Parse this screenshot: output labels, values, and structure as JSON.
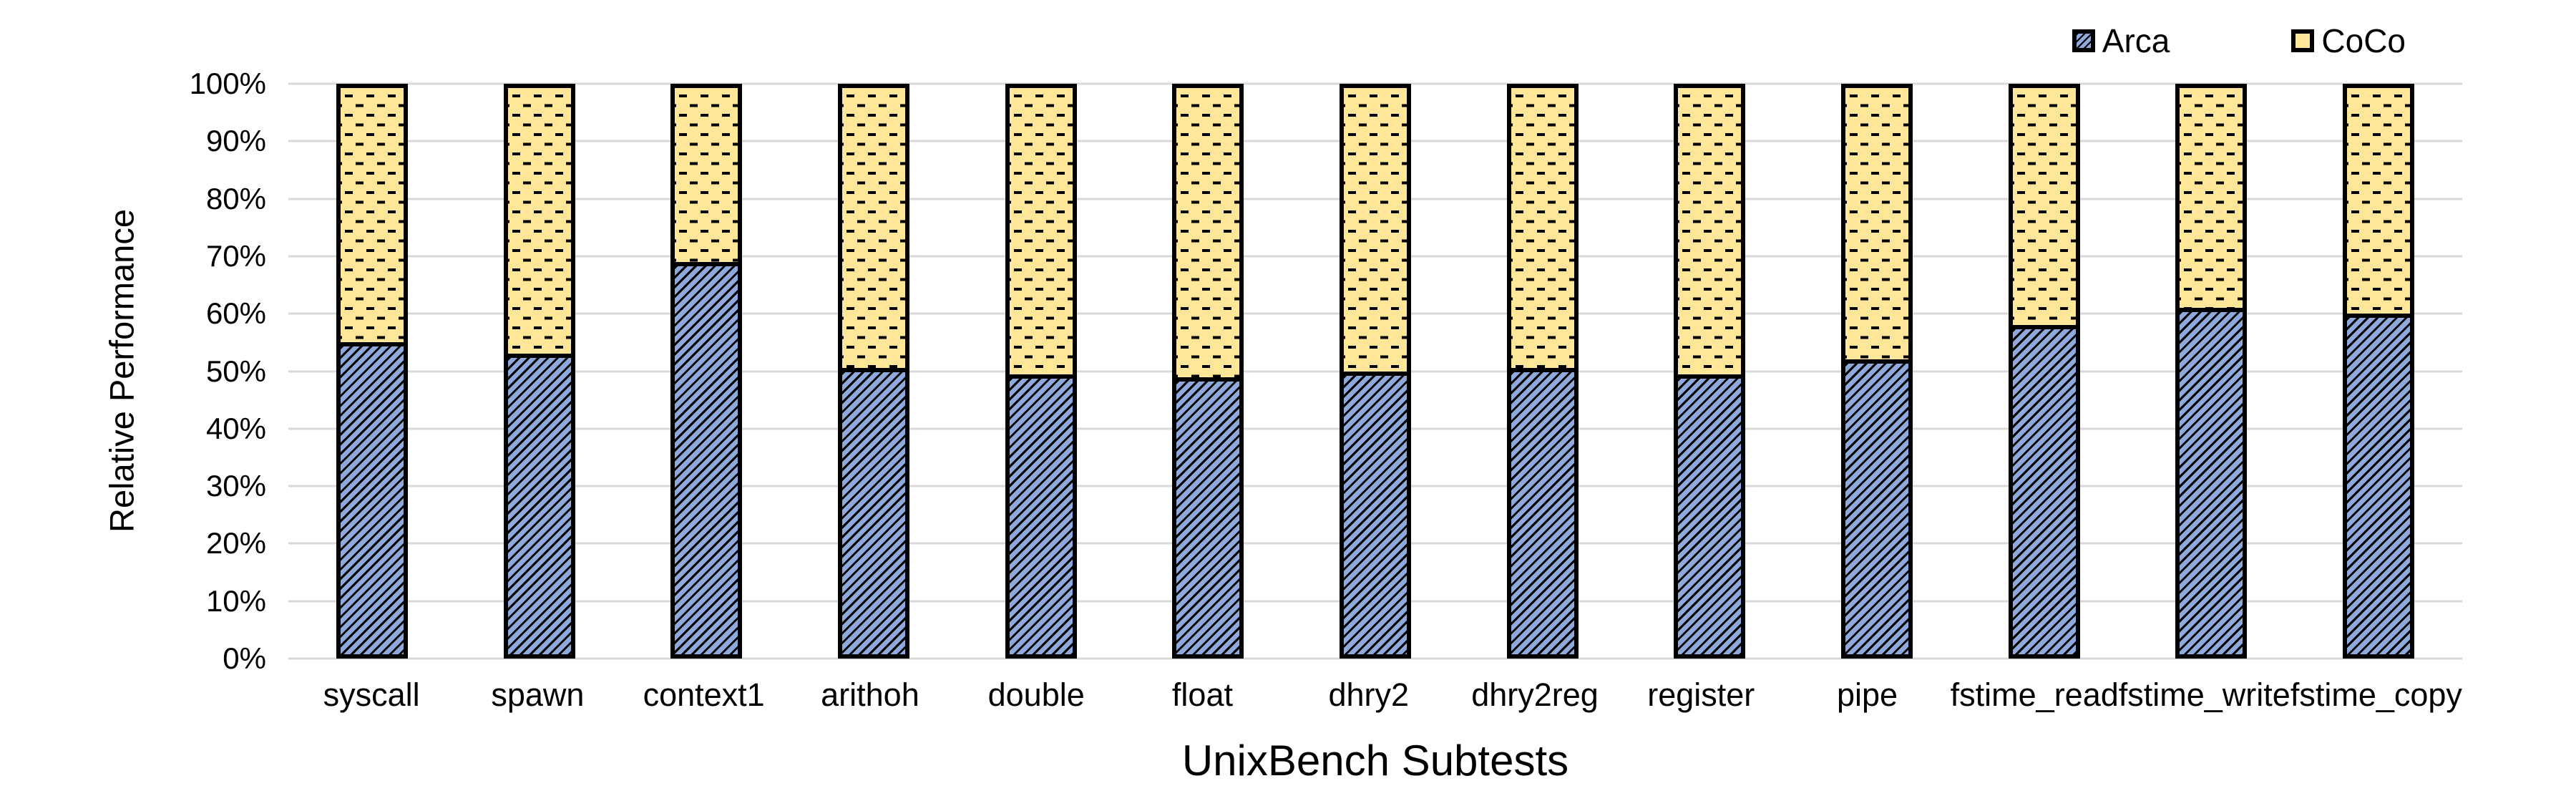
{
  "legend": {
    "items": [
      {
        "label": "Arca",
        "swatch": "blue-diagonal-hatch"
      },
      {
        "label": "CoCo",
        "swatch": "yellow-horizontal-dash"
      }
    ],
    "position": "top-right"
  },
  "y_axis": {
    "title": "Relative Performance",
    "tick_labels_top_down": [
      "100%",
      "90%",
      "80%",
      "70%",
      "60%",
      "50%",
      "40%",
      "30%",
      "20%",
      "10%",
      "0%"
    ]
  },
  "x_axis": {
    "title": "UnixBench Subtests"
  },
  "chart_data": {
    "type": "bar",
    "stacked": true,
    "stack_total": 100,
    "title": "",
    "xlabel": "UnixBench Subtests",
    "ylabel": "Relative Performance",
    "ylim": [
      0,
      100
    ],
    "ytick_step": 10,
    "grid": true,
    "legend_position": "top-right",
    "categories": [
      "syscall",
      "spawn",
      "context1",
      "arithoh",
      "double",
      "float",
      "dhry2",
      "dhry2reg",
      "register",
      "pipe",
      "fstime_read",
      "fstime_write",
      "fstime_copy"
    ],
    "series": [
      {
        "name": "Arca",
        "color": "#8EA9DB",
        "pattern": "diagonal-hatch",
        "values": [
          55,
          53,
          69,
          50.5,
          49.5,
          49,
          50,
          50.5,
          49.5,
          52,
          58,
          61,
          60
        ]
      },
      {
        "name": "CoCo",
        "color": "#FFE699",
        "pattern": "horizontal-dash",
        "values": [
          45,
          47,
          31,
          49.5,
          50.5,
          51,
          50,
          49.5,
          50.5,
          48,
          42,
          39,
          40
        ]
      }
    ],
    "colors": {
      "grid": "#D9D9D9",
      "bar_border": "#000000",
      "text": "#000000",
      "background": "#FFFFFF"
    }
  }
}
